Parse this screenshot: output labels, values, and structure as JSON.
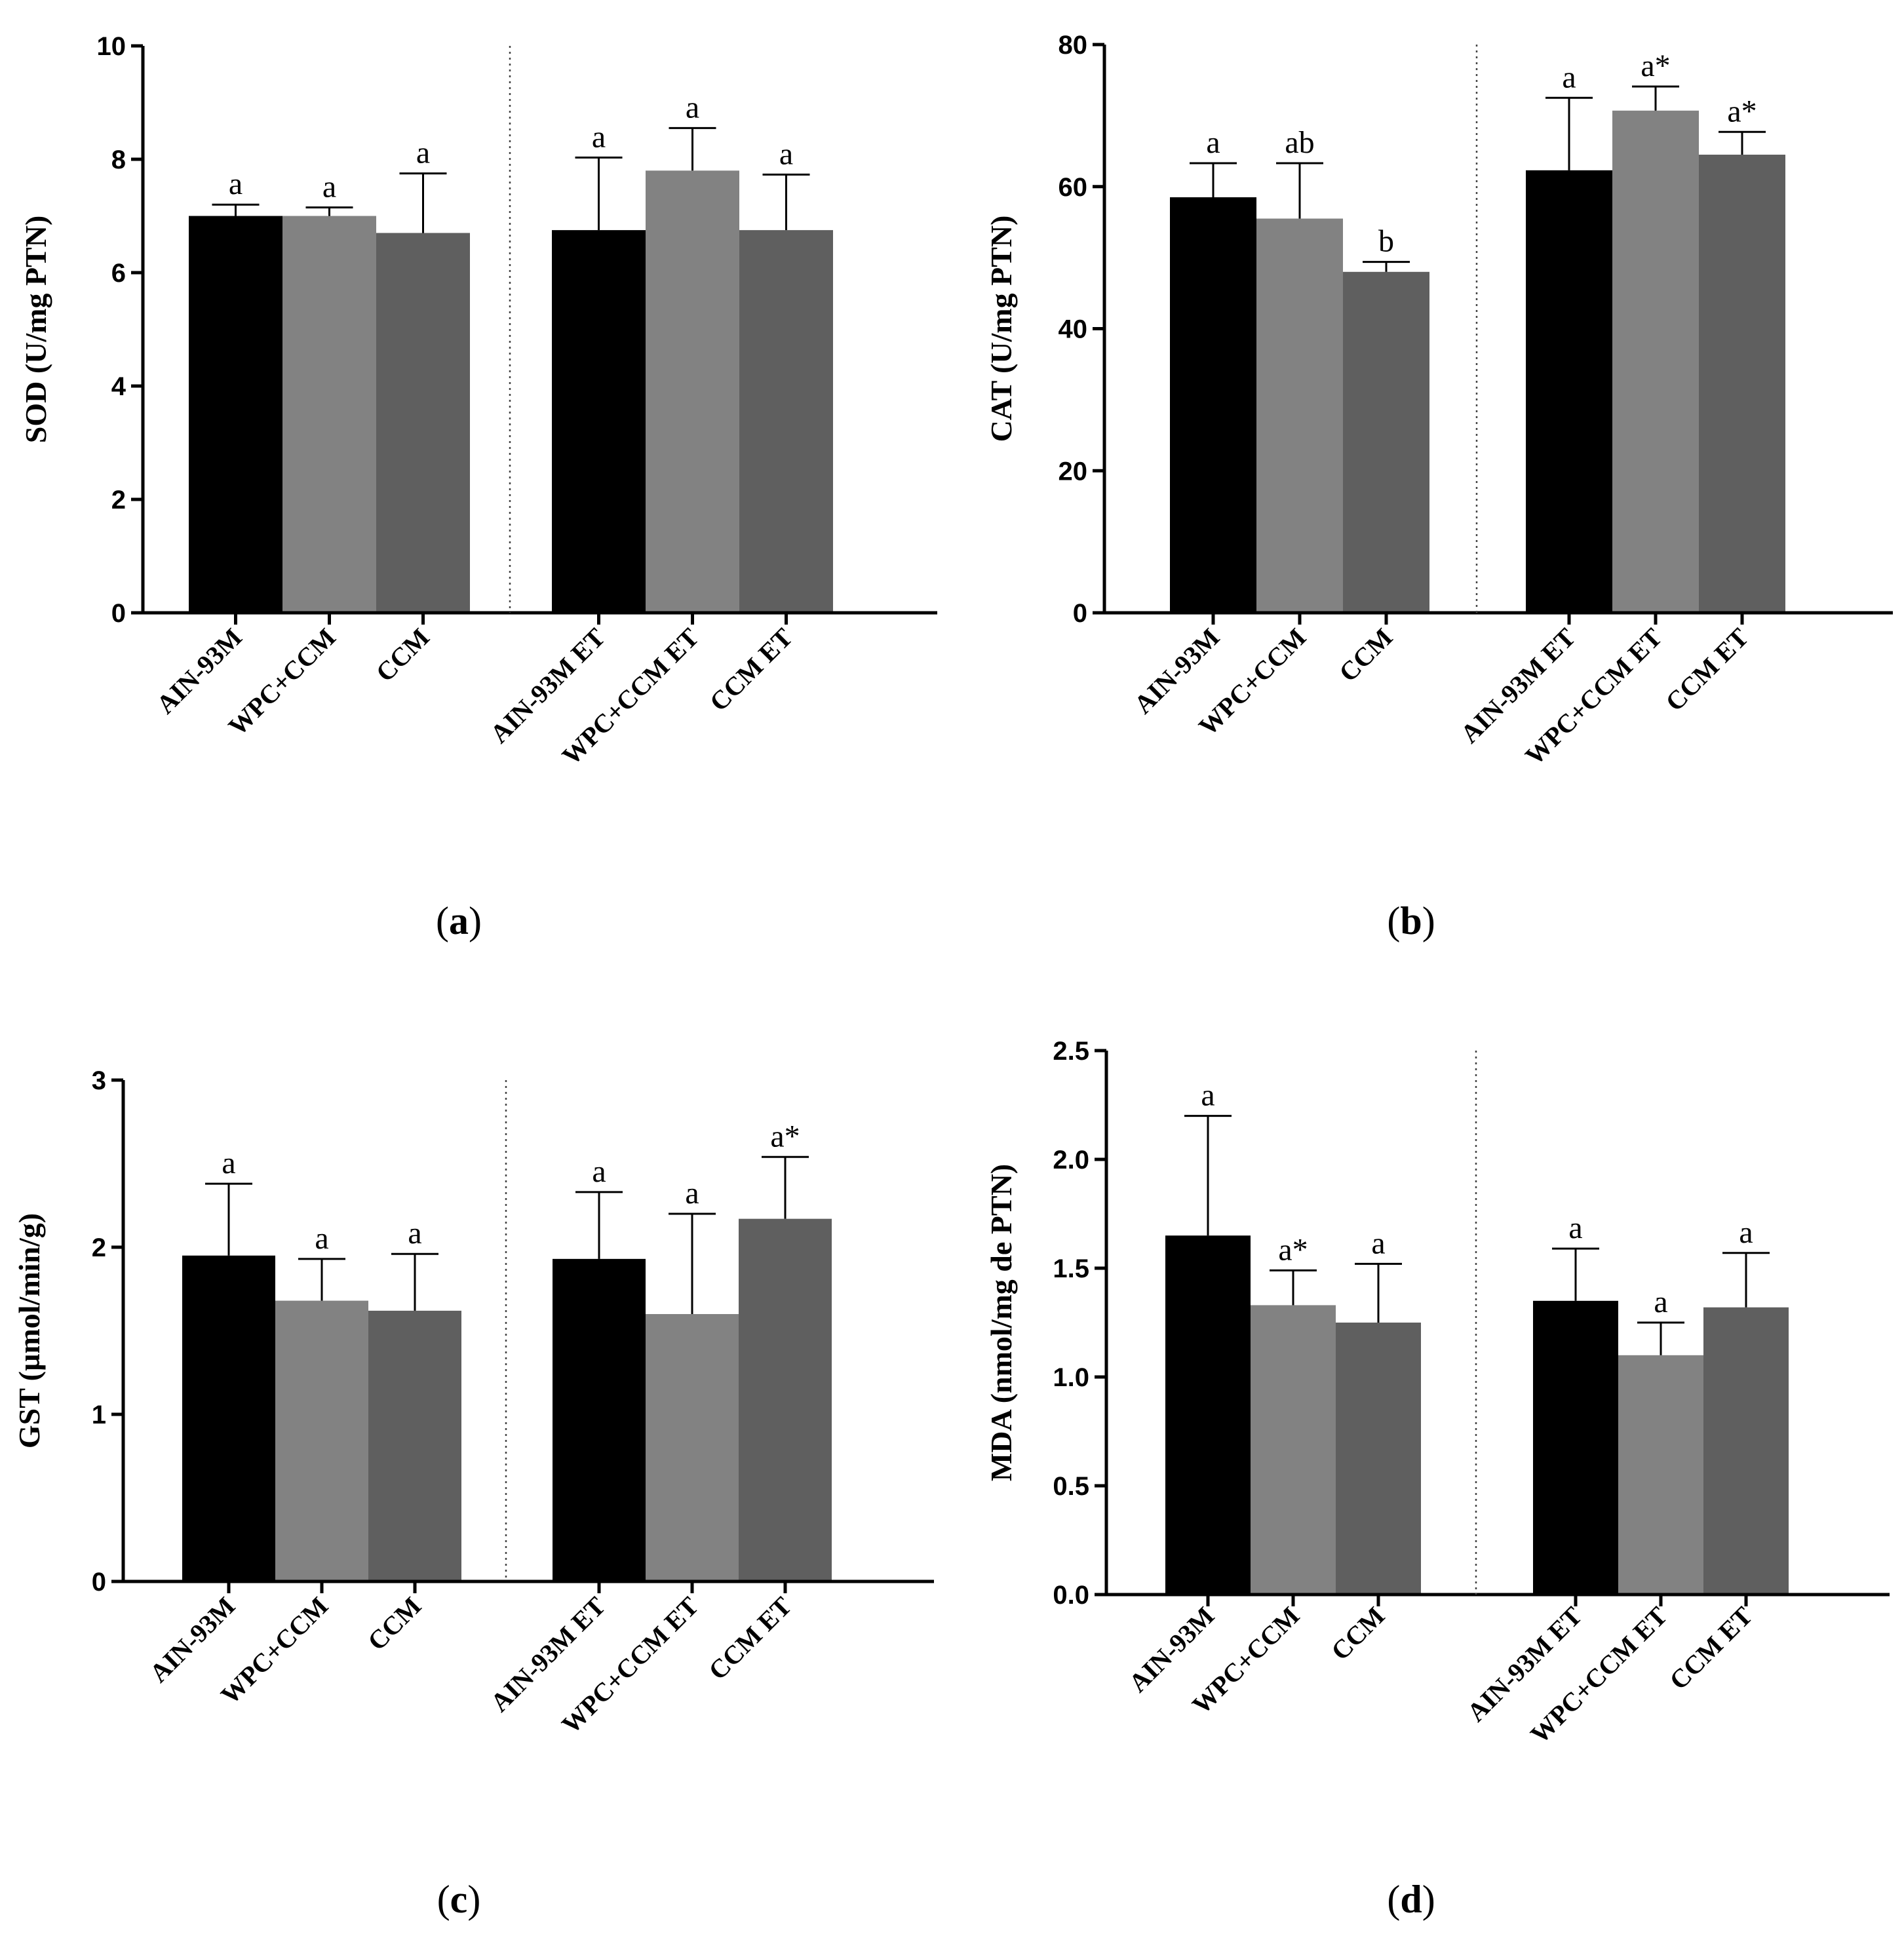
{
  "chart_data": [
    {
      "type": "bar",
      "panel_label": "a",
      "ylabel": "SOD (U/mg PTN)",
      "ylim": [
        0,
        10
      ],
      "yticks": [
        "0",
        "2",
        "4",
        "6",
        "8",
        "10"
      ],
      "ytick_values": [
        0,
        2,
        4,
        6,
        8,
        10
      ],
      "categories": [
        "AIN-93M",
        "WPC+CCM",
        "CCM",
        "AIN-93M ET",
        "WPC+CCM ET",
        "CCM ET"
      ],
      "values": [
        7.0,
        7.0,
        6.7,
        6.75,
        7.8,
        6.75
      ],
      "errors": [
        0.2,
        0.15,
        1.05,
        1.28,
        0.75,
        0.98
      ],
      "significance": [
        "a",
        "a",
        "a",
        "a",
        "a",
        "a"
      ],
      "colors": [
        "#000000",
        "#828282",
        "#5f5f5f",
        "#000000",
        "#828282",
        "#5f5f5f"
      ]
    },
    {
      "type": "bar",
      "panel_label": "b",
      "ylabel": "CAT (U/mg PTN)",
      "ylim": [
        0,
        80
      ],
      "yticks": [
        "0",
        "20",
        "40",
        "60",
        "80"
      ],
      "ytick_values": [
        0,
        20,
        40,
        60,
        80
      ],
      "categories": [
        "AIN-93M",
        "WPC+CCM",
        "CCM",
        "AIN-93M ET",
        "WPC+CCM ET",
        "CCM ET"
      ],
      "values": [
        58.5,
        55.5,
        48.0,
        62.3,
        70.7,
        64.5
      ],
      "errors": [
        4.8,
        7.8,
        1.4,
        10.2,
        3.4,
        3.2
      ],
      "significance": [
        "a",
        "ab",
        "b",
        "a",
        "a*",
        "a*"
      ],
      "colors": [
        "#000000",
        "#828282",
        "#5f5f5f",
        "#000000",
        "#828282",
        "#5f5f5f"
      ]
    },
    {
      "type": "bar",
      "panel_label": "c",
      "ylabel": "GST (µmol/min/g)",
      "ylim": [
        0,
        3
      ],
      "yticks": [
        "0",
        "1",
        "2",
        "3"
      ],
      "ytick_values": [
        0,
        1,
        2,
        3
      ],
      "categories": [
        "AIN-93M",
        "WPC+CCM",
        "CCM",
        "AIN-93M ET",
        "WPC+CCM ET",
        "CCM ET"
      ],
      "values": [
        1.95,
        1.68,
        1.62,
        1.93,
        1.6,
        2.17
      ],
      "errors": [
        0.43,
        0.25,
        0.34,
        0.4,
        0.6,
        0.37
      ],
      "significance": [
        "a",
        "a",
        "a",
        "a",
        "a",
        "a*"
      ],
      "colors": [
        "#000000",
        "#828282",
        "#5f5f5f",
        "#000000",
        "#828282",
        "#5f5f5f"
      ]
    },
    {
      "type": "bar",
      "panel_label": "d",
      "ylabel": "MDA (nmol/mg de PTN)",
      "ylim": [
        0,
        2.5
      ],
      "yticks": [
        "0.0",
        "0.5",
        "1.0",
        "1.5",
        "2.0",
        "2.5"
      ],
      "ytick_values": [
        0,
        0.5,
        1.0,
        1.5,
        2.0,
        2.5
      ],
      "categories": [
        "AIN-93M",
        "WPC+CCM",
        "CCM",
        "AIN-93M ET",
        "WPC+CCM ET",
        "CCM ET"
      ],
      "values": [
        1.65,
        1.33,
        1.25,
        1.35,
        1.1,
        1.32
      ],
      "errors": [
        0.55,
        0.16,
        0.27,
        0.24,
        0.15,
        0.25
      ],
      "significance": [
        "a",
        "a*",
        "a",
        "a",
        "a",
        "a"
      ],
      "colors": [
        "#000000",
        "#828282",
        "#5f5f5f",
        "#000000",
        "#828282",
        "#5f5f5f"
      ]
    }
  ]
}
